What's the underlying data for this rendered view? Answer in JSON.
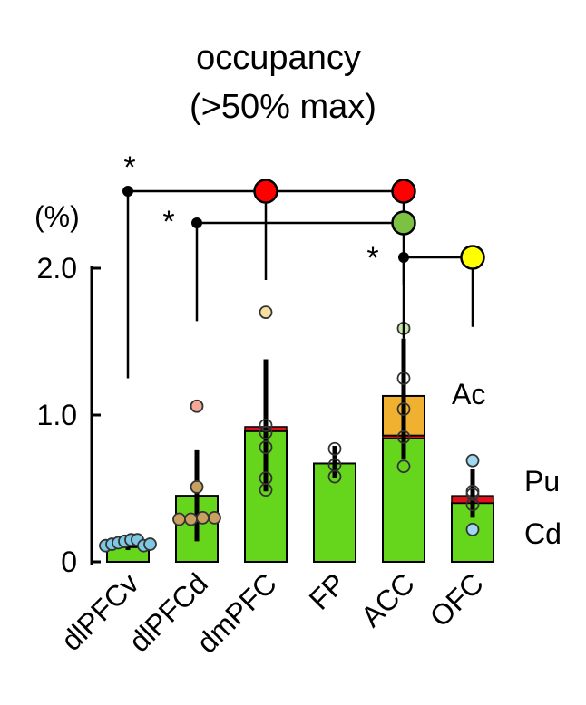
{
  "chart_data": {
    "type": "bar",
    "title_line1": "occupancy",
    "title_line2": "(>50% max)",
    "ylabel": "(%)",
    "ylim": [
      0,
      2.0
    ],
    "yticks": [
      {
        "value": 0,
        "label": "0"
      },
      {
        "value": 1.0,
        "label": "1.0"
      },
      {
        "value": 2.0,
        "label": "2.0"
      }
    ],
    "categories": [
      "dlPFCv",
      "dlPFCd",
      "dmPFC",
      "FP",
      "ACC",
      "OFC"
    ],
    "stack_labels": [
      "Ac",
      "Pu",
      "Cd"
    ],
    "colors": {
      "Cd": "#66d61c",
      "Pu": "#e0101a",
      "Ac": "#f0b030",
      "red_marker": "#ff0000",
      "green_marker": "#7dc142",
      "yellow_marker": "#ffff00"
    },
    "bars": [
      {
        "category": "dlPFCv",
        "Cd": 0.1,
        "Pu": 0.0,
        "Ac": 0.0,
        "err_low": 0.08,
        "err_high": 0.14,
        "points": [
          0.11,
          0.12,
          0.13,
          0.14,
          0.15,
          0.15,
          0.11,
          0.12
        ]
      },
      {
        "category": "dlPFCd",
        "Cd": 0.45,
        "Pu": 0.0,
        "Ac": 0.0,
        "err_low": 0.14,
        "err_high": 0.76,
        "points": [
          0.29,
          0.29,
          0.3,
          0.3,
          0.51,
          1.06
        ]
      },
      {
        "category": "dmPFC",
        "Cd": 0.89,
        "Pu": 0.03,
        "Ac": 0.0,
        "err_low": 0.48,
        "err_high": 1.38,
        "points": [
          0.49,
          0.57,
          0.78,
          0.88,
          0.93,
          1.7
        ]
      },
      {
        "category": "FP",
        "Cd": 0.67,
        "Pu": 0.0,
        "Ac": 0.0,
        "err_low": 0.57,
        "err_high": 0.79,
        "points": [
          0.58,
          0.66,
          0.77
        ]
      },
      {
        "category": "ACC",
        "Cd": 0.84,
        "Pu": 0.02,
        "Ac": 0.27,
        "err_low": 0.7,
        "err_high": 1.52,
        "points": [
          0.65,
          0.85,
          1.04,
          1.25,
          1.59
        ]
      },
      {
        "category": "OFC",
        "Cd": 0.4,
        "Pu": 0.05,
        "Ac": 0.0,
        "err_low": 0.3,
        "err_high": 0.63,
        "points": [
          0.22,
          0.39,
          0.46,
          0.48,
          0.69
        ]
      }
    ],
    "comparisons": [
      {
        "from": "dlPFCv",
        "to": [
          "dmPFC",
          "ACC"
        ],
        "marker_colors": [
          "#ff0000",
          "#ff0000"
        ],
        "label": "*"
      },
      {
        "from": "dlPFCd",
        "to": [
          "ACC"
        ],
        "marker_colors": [
          "#7dc142"
        ],
        "label": "*"
      },
      {
        "from": "ACC",
        "to": [
          "OFC"
        ],
        "marker_colors": [
          "#ffff00"
        ],
        "label": "*"
      }
    ]
  }
}
